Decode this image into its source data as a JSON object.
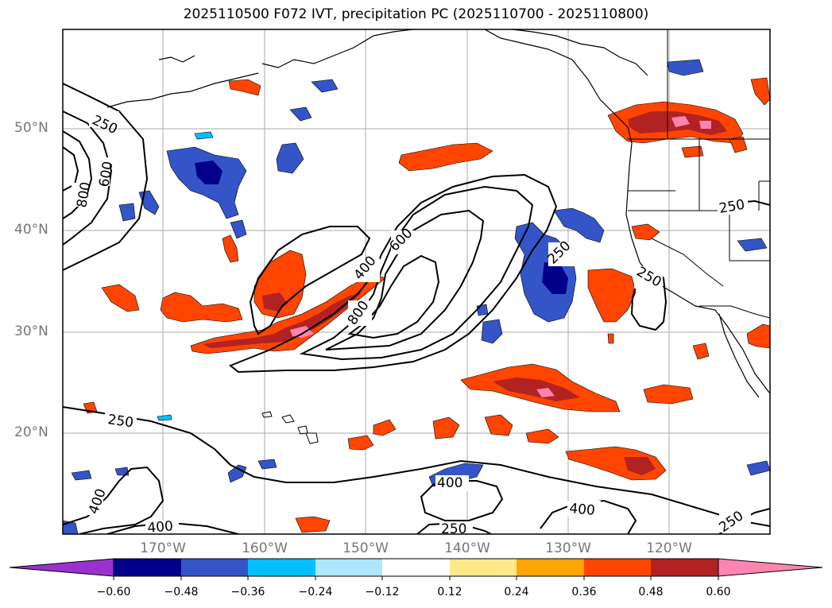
{
  "title": "2025110500 F072 IVT, precipitation PC (2025110700 - 2025110800)",
  "lat_labels": [
    "50°N",
    "40°N",
    "30°N",
    "20°N"
  ],
  "lon_labels": [
    "170°W",
    "160°W",
    "150°W",
    "140°W",
    "130°W",
    "120°W"
  ],
  "colorbar": {
    "tick_labels": [
      "−0.60",
      "−0.48",
      "−0.36",
      "−0.24",
      "−0.12",
      "0.12",
      "0.24",
      "0.36",
      "0.48",
      "0.60"
    ],
    "colors": [
      "#9b30d0",
      "#00008b",
      "#3455c8",
      "#00bfff",
      "#ade6ff",
      "#ffffff",
      "#fde98a",
      "#ffa500",
      "#ff4500",
      "#b22222",
      "#ff85b0"
    ]
  },
  "contour_labels": [
    "250",
    "400",
    "600",
    "800"
  ],
  "colors": {
    "contour": "#000000",
    "grid": "#aaaaaa",
    "coast": "#000000"
  }
}
